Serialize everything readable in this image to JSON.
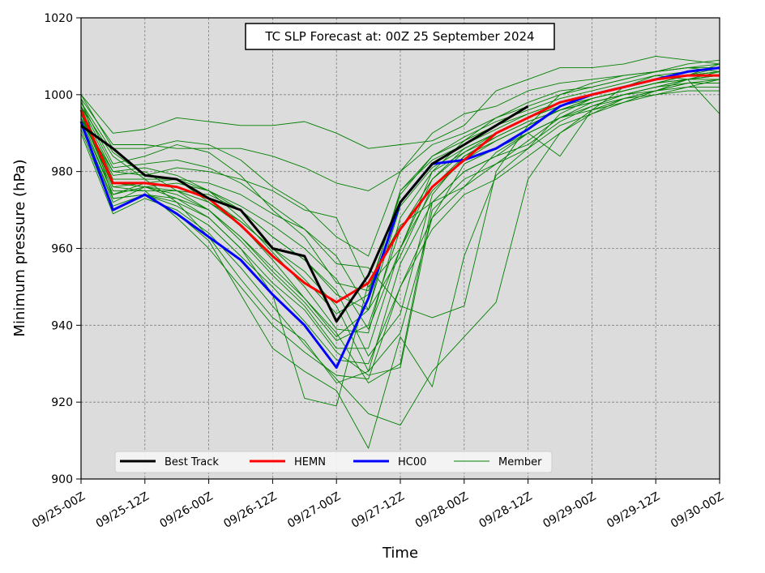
{
  "chart_data": {
    "type": "line",
    "title": "TC SLP Forecast at: 00Z 25 September 2024",
    "xlabel": "Time",
    "ylabel": "Minimum pressure (hPa)",
    "xlim": [
      0,
      120
    ],
    "ylim": [
      900,
      1020
    ],
    "x_ticks": [
      {
        "x": 0,
        "label": "09/25-00Z"
      },
      {
        "x": 12,
        "label": "09/25-12Z"
      },
      {
        "x": 24,
        "label": "09/26-00Z"
      },
      {
        "x": 36,
        "label": "09/26-12Z"
      },
      {
        "x": 48,
        "label": "09/27-00Z"
      },
      {
        "x": 60,
        "label": "09/27-12Z"
      },
      {
        "x": 72,
        "label": "09/28-00Z"
      },
      {
        "x": 84,
        "label": "09/28-12Z"
      },
      {
        "x": 96,
        "label": "09/29-00Z"
      },
      {
        "x": 108,
        "label": "09/29-12Z"
      },
      {
        "x": 120,
        "label": "09/30-00Z"
      }
    ],
    "y_ticks": [
      900,
      920,
      940,
      960,
      980,
      1000,
      1020
    ],
    "grid": true,
    "background": "#dcdcdc",
    "legend_position": "lower-left",
    "series": [
      {
        "name": "Best Track",
        "color": "#000000",
        "x": [
          0,
          6,
          12,
          18,
          24,
          30,
          36,
          42,
          48,
          54,
          60,
          66,
          72,
          78,
          84
        ],
        "y": [
          992,
          986,
          979,
          978,
          973,
          970,
          960,
          958,
          941,
          953,
          972,
          982,
          987,
          992,
          997
        ]
      },
      {
        "name": "HEMN",
        "color": "#ff0000",
        "x": [
          0,
          6,
          12,
          18,
          24,
          30,
          36,
          42,
          48,
          54,
          60,
          66,
          72,
          78,
          84,
          90,
          96,
          102,
          108,
          114,
          120
        ],
        "y": [
          996,
          977,
          977,
          976,
          973,
          966,
          958,
          951,
          946,
          951,
          965,
          976,
          983,
          990,
          994,
          998,
          1000,
          1002,
          1004,
          1005,
          1005
        ]
      },
      {
        "name": "HC00",
        "color": "#0000ff",
        "x": [
          0,
          6,
          12,
          18,
          24,
          30,
          36,
          42,
          48,
          54,
          60,
          66,
          72,
          78,
          84,
          90,
          96,
          102,
          108,
          114,
          120
        ],
        "y": [
          993,
          970,
          974,
          969,
          963,
          957,
          948,
          940,
          929,
          947,
          972,
          982,
          983,
          986,
          991,
          997,
          1000,
          1002,
          1004,
          1006,
          1007
        ]
      }
    ],
    "members": {
      "name": "Member",
      "color": "#008000",
      "x": [
        0,
        6,
        12,
        18,
        24,
        30,
        36,
        42,
        48,
        54,
        60,
        66,
        72,
        78,
        84,
        90,
        96,
        102,
        108,
        114,
        120
      ],
      "lines": [
        [
          1000,
          990,
          991,
          994,
          993,
          992,
          992,
          993,
          990,
          986,
          987,
          988,
          992,
          1001,
          1004,
          1007,
          1007,
          1008,
          1010,
          1009,
          1008
        ],
        [
          999,
          987,
          987,
          986,
          986,
          986,
          984,
          981,
          977,
          975,
          980,
          990,
          995,
          997,
          1001,
          1003,
          1004,
          1005,
          1006,
          1007,
          1006
        ],
        [
          998,
          985,
          979,
          981,
          980,
          978,
          975,
          970,
          968,
          950,
          960,
          980,
          988,
          994,
          998,
          1001,
          1002,
          1004,
          1006,
          1007,
          1007
        ],
        [
          997,
          984,
          978,
          978,
          977,
          974,
          969,
          965,
          958,
          944,
          975,
          984,
          988,
          992,
          995,
          998,
          1000,
          1002,
          1004,
          1005,
          1005
        ],
        [
          996,
          977,
          976,
          977,
          975,
          971,
          966,
          960,
          952,
          939,
          960,
          978,
          986,
          990,
          994,
          997,
          999,
          1001,
          1003,
          1004,
          1004
        ],
        [
          995,
          975,
          975,
          975,
          974,
          970,
          963,
          957,
          949,
          932,
          943,
          974,
          984,
          989,
          993,
          996,
          998,
          1000,
          1002,
          1003,
          1003
        ],
        [
          994,
          974,
          977,
          978,
          972,
          967,
          960,
          954,
          945,
          928,
          938,
          968,
          982,
          986,
          990,
          994,
          998,
          1000,
          1001,
          1003,
          1003
        ],
        [
          993,
          972,
          976,
          973,
          970,
          963,
          955,
          947,
          938,
          925,
          930,
          972,
          980,
          984,
          987,
          993,
          997,
          999,
          1001,
          1002,
          1002
        ],
        [
          992,
          971,
          974,
          972,
          968,
          960,
          951,
          944,
          933,
          927,
          929,
          970,
          978,
          982,
          988,
          994,
          996,
          998,
          1000,
          1001,
          1001
        ],
        [
          991,
          970,
          974,
          971,
          966,
          958,
          950,
          941,
          931,
          930,
          950,
          968,
          976,
          982,
          986,
          992,
          995,
          999,
          1001,
          1003,
          1004
        ],
        [
          990,
          969,
          973,
          970,
          964,
          955,
          945,
          935,
          926,
          917,
          914,
          928,
          937,
          946,
          978,
          990,
          996,
          999,
          1000,
          1002,
          1004
        ],
        [
          999,
          973,
          974,
          969,
          962,
          948,
          934,
          928,
          923,
          908,
          937,
          924,
          958,
          979,
          986,
          995,
          999,
          1001,
          1003,
          1005,
          1008
        ],
        [
          997,
          976,
          975,
          968,
          960,
          950,
          940,
          933,
          927,
          926,
          950,
          965,
          974,
          978,
          984,
          990,
          995,
          998,
          1001,
          1004,
          1005
        ],
        [
          996,
          978,
          978,
          972,
          963,
          952,
          942,
          936,
          925,
          928,
          956,
          972,
          980,
          984,
          990,
          994,
          997,
          1000,
          1002,
          1004,
          1006
        ],
        [
          995,
          979,
          980,
          975,
          970,
          962,
          953,
          945,
          934,
          934,
          960,
          975,
          983,
          988,
          992,
          996,
          999,
          1001,
          1003,
          1005,
          1006
        ],
        [
          994,
          980,
          981,
          979,
          975,
          968,
          959,
          950,
          939,
          938,
          968,
          980,
          985,
          990,
          994,
          997,
          1000,
          1002,
          1004,
          1005,
          1007
        ],
        [
          998,
          982,
          984,
          987,
          985,
          979,
          970,
          963,
          951,
          949,
          974,
          984,
          989,
          993,
          996,
          999,
          1001,
          1003,
          1005,
          1006,
          1007
        ],
        [
          1000,
          986,
          986,
          988,
          987,
          983,
          976,
          971,
          963,
          958,
          980,
          987,
          990,
          994,
          997,
          1000,
          1002,
          1004,
          1006,
          1007,
          1008
        ],
        [
          993,
          974,
          976,
          975,
          972,
          966,
          957,
          947,
          937,
          944,
          971,
          981,
          986,
          990,
          994,
          997,
          1000,
          1002,
          1004,
          1005,
          1006
        ],
        [
          995,
          976,
          977,
          976,
          973,
          967,
          960,
          952,
          943,
          948,
          975,
          983,
          987,
          991,
          995,
          998,
          1000,
          1002,
          1004,
          1005,
          1006
        ],
        [
          992,
          973,
          974,
          973,
          968,
          960,
          948,
          921,
          919,
          951,
          966,
          972,
          976,
          985,
          990,
          984,
          996,
          1002,
          1005,
          1004,
          995
        ],
        [
          997,
          981,
          982,
          983,
          981,
          977,
          971,
          965,
          956,
          955,
          945,
          942,
          945,
          980,
          992,
          1000,
          1003,
          1005,
          1006,
          1008,
          1009
        ],
        [
          996,
          980,
          979,
          978,
          975,
          970,
          963,
          957,
          948,
          944,
          958,
          976,
          984,
          988,
          992,
          996,
          998,
          1000,
          1002,
          1004,
          1005
        ],
        [
          994,
          977,
          976,
          974,
          970,
          963,
          954,
          946,
          936,
          940,
          965,
          978,
          985,
          989,
          993,
          996,
          999,
          1001,
          1003,
          1004,
          1005
        ]
      ]
    }
  }
}
